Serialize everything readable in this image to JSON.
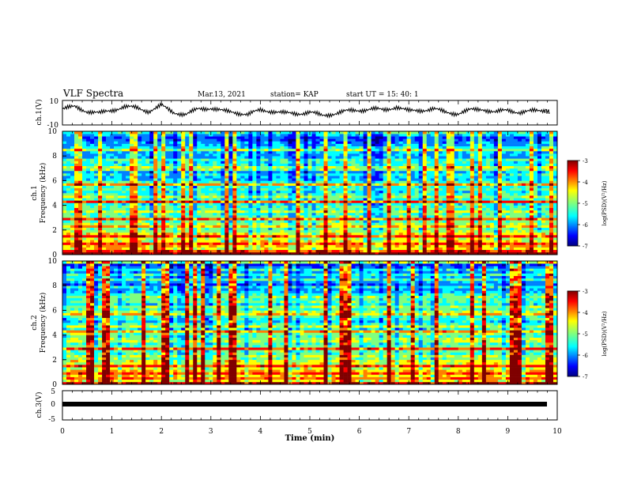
{
  "header": {
    "title": "VLF Spectra",
    "date": "Mar.13, 2021",
    "station": "station= KAP",
    "start": "start  UT =   15: 40: 1"
  },
  "colors": {
    "colormap": [
      "#00007f",
      "#0000ff",
      "#007fff",
      "#00ffff",
      "#7fff7f",
      "#ffff00",
      "#ff7f00",
      "#ff0000",
      "#7f0000"
    ],
    "trace": "#000000"
  },
  "chart_data": [
    {
      "type": "line",
      "ylabel": "ch.1(V)",
      "ylim": [
        -10,
        10
      ],
      "y_ticks": [
        "10",
        "-10"
      ],
      "x_range": [
        0,
        10
      ],
      "series": [
        {
          "x": [
            0,
            0.25,
            0.5,
            0.75,
            1.0,
            1.25,
            1.5,
            1.75,
            2.0,
            2.25,
            2.5,
            2.75,
            3.0,
            3.25,
            3.5,
            3.75,
            4.0,
            4.25,
            4.5,
            4.75,
            5.0,
            5.25,
            5.5,
            5.75,
            6.0,
            6.25,
            6.5,
            6.75,
            7.0,
            7.25,
            7.5,
            7.75,
            8.0,
            8.25,
            8.5,
            8.75,
            9.0,
            9.25,
            9.5,
            9.75,
            9.85
          ],
          "values": [
            3,
            5,
            1,
            -1,
            2,
            5,
            4,
            1,
            6,
            0,
            -2,
            3,
            4,
            1,
            0,
            -2,
            2,
            1,
            -1,
            -1,
            0,
            -3,
            -1,
            1,
            2,
            3,
            2,
            5,
            1,
            2,
            3,
            0,
            -1,
            2,
            3,
            0,
            2,
            0,
            1,
            2,
            0
          ]
        }
      ]
    },
    {
      "type": "heatmap",
      "ylabel": "ch.1\nFrequency (kHz)",
      "ylim": [
        0,
        10
      ],
      "y_ticks": [
        "0",
        "2",
        "4",
        "6",
        "8",
        "10"
      ],
      "x_range": [
        0,
        10
      ],
      "colorbar": {
        "label": "log(PSD)(V²/Hz)",
        "range": [
          -7,
          -3
        ],
        "ticks": [
          "-3",
          "-4",
          "-5",
          "-6",
          "-7"
        ]
      }
    },
    {
      "type": "heatmap",
      "ylabel": "ch.2\nFrequency (kHz)",
      "ylim": [
        0,
        10
      ],
      "y_ticks": [
        "0",
        "2",
        "4",
        "6",
        "8",
        "10"
      ],
      "x_range": [
        0,
        10
      ],
      "colorbar": {
        "label": "log(PSD)(V²/Hz)",
        "range": [
          -7,
          -3
        ],
        "ticks": [
          "-3",
          "-4",
          "-5",
          "-6",
          "-7"
        ]
      }
    },
    {
      "type": "line",
      "ylabel": "ch.3(V)",
      "ylim": [
        -5,
        5
      ],
      "y_ticks": [
        "5",
        "0",
        "-5"
      ],
      "x_range": [
        0,
        10
      ],
      "series": [
        {
          "x": [
            0,
            9.85
          ],
          "values": [
            -0.5,
            -0.5
          ]
        }
      ]
    }
  ],
  "x_axis": {
    "xlabel": "Time (min)",
    "ticks": [
      "0",
      "1",
      "2",
      "3",
      "4",
      "5",
      "6",
      "7",
      "8",
      "9",
      "10"
    ]
  }
}
